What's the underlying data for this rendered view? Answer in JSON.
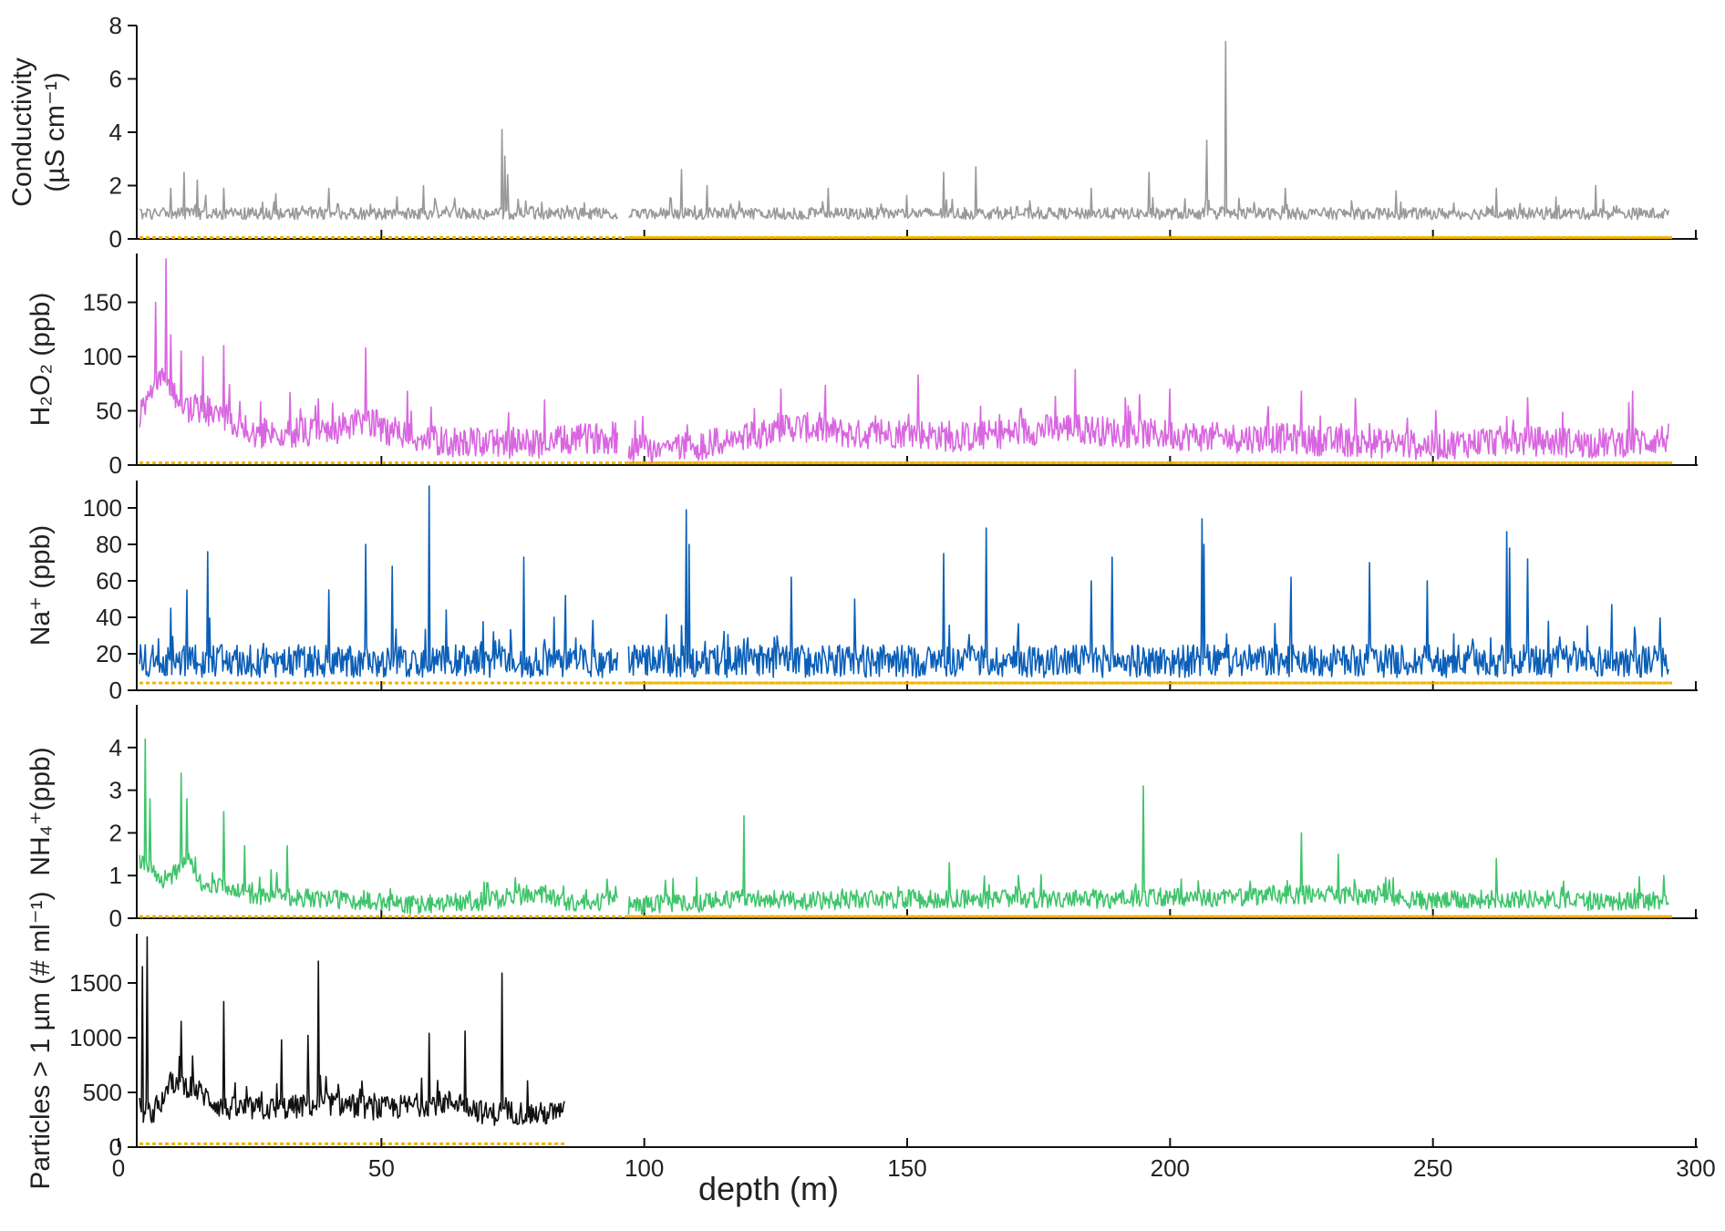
{
  "chart_data": {
    "type": "line",
    "xlabel": "depth (m)",
    "xlim": [
      0,
      300
    ],
    "xticks": [
      0,
      50,
      100,
      150,
      200,
      250,
      300
    ],
    "panels": [
      {
        "key": "cond",
        "ylabel": [
          "Conductivity",
          "(µS cm⁻¹)"
        ],
        "ylim": [
          0,
          8
        ],
        "yticks": [
          0,
          2,
          4,
          6,
          8
        ],
        "color": "#999999",
        "baseline": 0.05,
        "baseline_color": "#f0b400",
        "xrange": [
          [
            4,
            95
          ],
          [
            97,
            295
          ]
        ],
        "base": 0.95,
        "noise": 0.22,
        "spikes": [
          [
            10,
            1.9
          ],
          [
            12.5,
            2.5
          ],
          [
            15,
            2.2
          ],
          [
            20,
            1.9
          ],
          [
            30,
            1.7
          ],
          [
            40,
            1.9
          ],
          [
            58,
            2.0
          ],
          [
            73,
            4.1
          ],
          [
            73.5,
            3.1
          ],
          [
            74,
            2.4
          ],
          [
            107,
            2.6
          ],
          [
            112,
            2.0
          ],
          [
            135,
            1.9
          ],
          [
            157,
            2.5
          ],
          [
            163,
            2.7
          ],
          [
            185,
            1.9
          ],
          [
            196,
            2.5
          ],
          [
            207,
            3.7
          ],
          [
            210.5,
            7.4
          ],
          [
            222,
            1.9
          ],
          [
            243,
            1.8
          ],
          [
            262,
            1.9
          ],
          [
            281,
            2.0
          ]
        ],
        "series": []
      },
      {
        "key": "h2o2",
        "ylabel": [
          "H₂O₂ (ppb)"
        ],
        "ylim": [
          0,
          195
        ],
        "yticks": [
          0,
          50,
          100,
          150
        ],
        "color": "#d966e0",
        "baseline": 2,
        "baseline_color": "#f0b400",
        "xrange": [
          [
            4,
            95
          ],
          [
            97,
            295
          ]
        ],
        "series": [
          {
            "x": [
              4,
              6,
              8,
              10,
              12,
              14,
              16,
              18,
              20,
              25,
              30,
              35,
              40,
              45,
              48,
              52,
              60,
              70,
              80,
              90,
              95,
              97,
              110,
              120,
              125,
              130,
              140,
              150,
              160,
              170,
              180,
              190,
              200,
              210,
              220,
              230,
              240,
              250,
              260,
              270,
              280,
              290,
              295
            ],
            "y": [
              45,
              60,
              80,
              70,
              55,
              50,
              55,
              45,
              45,
              30,
              28,
              30,
              30,
              38,
              40,
              30,
              22,
              20,
              20,
              25,
              24,
              15,
              18,
              25,
              35,
              35,
              28,
              30,
              25,
              30,
              35,
              30,
              28,
              25,
              25,
              22,
              20,
              18,
              22,
              22,
              20,
              22,
              25
            ]
          }
        ],
        "noise": 14,
        "spikes": [
          [
            7,
            150
          ],
          [
            9,
            190
          ],
          [
            10,
            120
          ],
          [
            12,
            105
          ],
          [
            16,
            100
          ],
          [
            20,
            110
          ],
          [
            47,
            108
          ],
          [
            55,
            68
          ],
          [
            81,
            60
          ],
          [
            126,
            70
          ],
          [
            152,
            83
          ],
          [
            182,
            88
          ],
          [
            200,
            70
          ],
          [
            225,
            68
          ],
          [
            268,
            62
          ],
          [
            288,
            68
          ]
        ]
      },
      {
        "key": "na",
        "ylabel": [
          "Na⁺ (ppb)"
        ],
        "ylim": [
          0,
          115
        ],
        "yticks": [
          0,
          20,
          40,
          60,
          80,
          100
        ],
        "color": "#0a5fb8",
        "baseline": 4,
        "baseline_color": "#f0b400",
        "xrange": [
          [
            4,
            95
          ],
          [
            97,
            295
          ]
        ],
        "base": 16,
        "noise": 9,
        "spikes": [
          [
            10,
            45
          ],
          [
            13,
            55
          ],
          [
            17,
            76
          ],
          [
            40,
            55
          ],
          [
            47,
            80
          ],
          [
            52,
            68
          ],
          [
            59,
            112
          ],
          [
            77,
            73
          ],
          [
            85,
            52
          ],
          [
            108,
            99
          ],
          [
            108.5,
            80
          ],
          [
            128,
            62
          ],
          [
            140,
            50
          ],
          [
            157,
            75
          ],
          [
            165,
            89
          ],
          [
            185,
            60
          ],
          [
            189,
            73
          ],
          [
            206,
            94
          ],
          [
            206.5,
            80
          ],
          [
            223,
            62
          ],
          [
            238,
            70
          ],
          [
            249,
            60
          ],
          [
            264,
            87
          ],
          [
            264.5,
            78
          ],
          [
            268,
            72
          ],
          [
            284,
            47
          ]
        ]
      },
      {
        "key": "nh4",
        "ylabel": [
          "NH₄⁺(ppb)"
        ],
        "ylim": [
          0,
          5
        ],
        "yticks": [
          0,
          1,
          2,
          3,
          4
        ],
        "color": "#3fc46b",
        "baseline": 0.04,
        "baseline_color": "#f0b400",
        "xrange": [
          [
            4,
            95
          ],
          [
            97,
            295
          ]
        ],
        "series": [
          {
            "x": [
              4,
              6,
              8,
              10,
              13,
              16,
              20,
              25,
              30,
              40,
              50,
              55,
              60,
              70,
              80,
              85,
              90,
              95,
              97,
              110,
              120,
              130,
              150,
              170,
              190,
              200,
              210,
              220,
              230,
              240,
              250,
              260,
              270,
              280,
              290,
              295
            ],
            "y": [
              1.4,
              1.2,
              0.9,
              1.0,
              1.4,
              0.8,
              0.7,
              0.55,
              0.5,
              0.45,
              0.4,
              0.3,
              0.35,
              0.4,
              0.6,
              0.4,
              0.3,
              0.6,
              0.3,
              0.35,
              0.5,
              0.4,
              0.45,
              0.45,
              0.45,
              0.5,
              0.45,
              0.55,
              0.55,
              0.5,
              0.4,
              0.45,
              0.45,
              0.4,
              0.4,
              0.45
            ]
          }
        ],
        "noise": 0.22,
        "spikes": [
          [
            5,
            4.2
          ],
          [
            6,
            2.8
          ],
          [
            12,
            3.4
          ],
          [
            13,
            2.8
          ],
          [
            20,
            2.5
          ],
          [
            24,
            1.7
          ],
          [
            32,
            1.7
          ],
          [
            119,
            2.4
          ],
          [
            158,
            1.3
          ],
          [
            195,
            3.1
          ],
          [
            225,
            2.0
          ],
          [
            232,
            1.5
          ],
          [
            262,
            1.4
          ],
          [
            294,
            1.0
          ]
        ]
      },
      {
        "key": "part",
        "ylabel": [
          "Particles > 1 µm (# ml⁻¹)"
        ],
        "ylim": [
          0,
          1950
        ],
        "yticks": [
          0,
          500,
          1000,
          1500
        ],
        "color": "#111111",
        "baseline": 30,
        "baseline_color": "#f0b400",
        "xrange": [
          [
            4,
            85
          ]
        ],
        "series": [
          {
            "x": [
              4,
              6,
              8,
              10,
              14,
              20,
              30,
              40,
              50,
              60,
              65,
              70,
              75,
              80,
              85
            ],
            "y": [
              350,
              300,
              400,
              600,
              550,
              350,
              350,
              400,
              350,
              400,
              420,
              300,
              320,
              300,
              320
            ]
          }
        ],
        "noise": 110,
        "spikes": [
          [
            4.5,
            1650
          ],
          [
            5.5,
            1920
          ],
          [
            12,
            1150
          ],
          [
            20,
            1330
          ],
          [
            31,
            980
          ],
          [
            36,
            1020
          ],
          [
            38,
            1700
          ],
          [
            59,
            1040
          ],
          [
            66,
            1060
          ],
          [
            73,
            1590
          ]
        ]
      }
    ]
  }
}
